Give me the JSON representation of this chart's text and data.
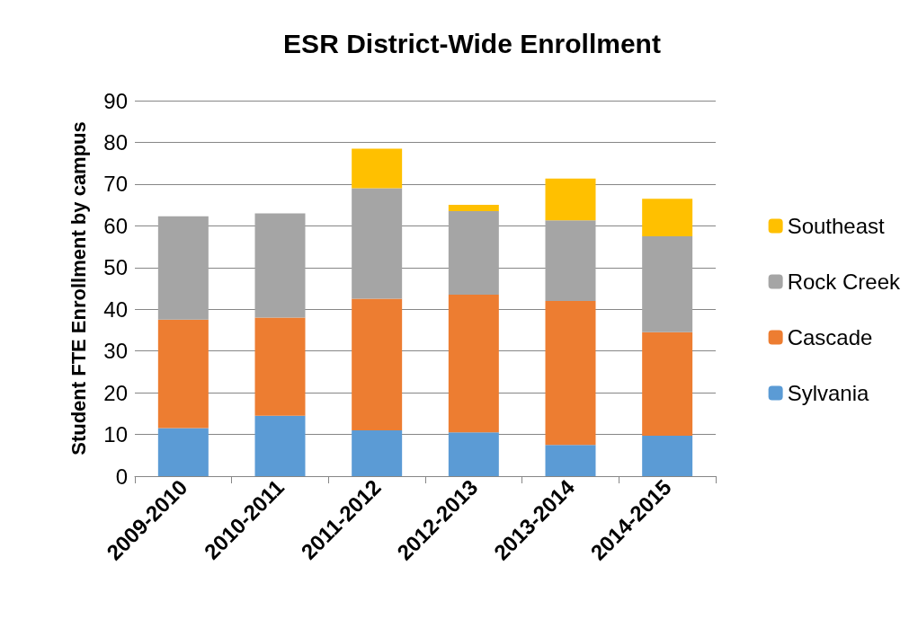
{
  "chart_data": {
    "type": "bar",
    "title": "ESR District-Wide Enrollment",
    "ylabel": "Student FTE Enrollment by campus",
    "categories": [
      "2009-2010",
      "2010-2011",
      "2011-2012",
      "2012-2013",
      "2013-2014",
      "2014-2015"
    ],
    "stacked": true,
    "ylim": [
      0,
      90
    ],
    "yticks": [
      0,
      10,
      20,
      30,
      40,
      50,
      60,
      70,
      80,
      90
    ],
    "grid": "y",
    "legend": "right",
    "series": [
      {
        "name": "Sylvania",
        "color": "#5b9bd5",
        "values": [
          11.5,
          14.5,
          11,
          10.5,
          7.5,
          9.7
        ]
      },
      {
        "name": "Cascade",
        "color": "#ed7d31",
        "values": [
          26,
          23.5,
          31.5,
          33,
          34.5,
          24.8
        ]
      },
      {
        "name": "Rock Creek",
        "color": "#a5a5a5",
        "values": [
          24.8,
          25,
          26.5,
          20,
          19.3,
          23
        ]
      },
      {
        "name": "Southeast",
        "color": "#ffc000",
        "values": [
          null,
          null,
          9.5,
          1.5,
          10,
          9
        ]
      }
    ]
  }
}
